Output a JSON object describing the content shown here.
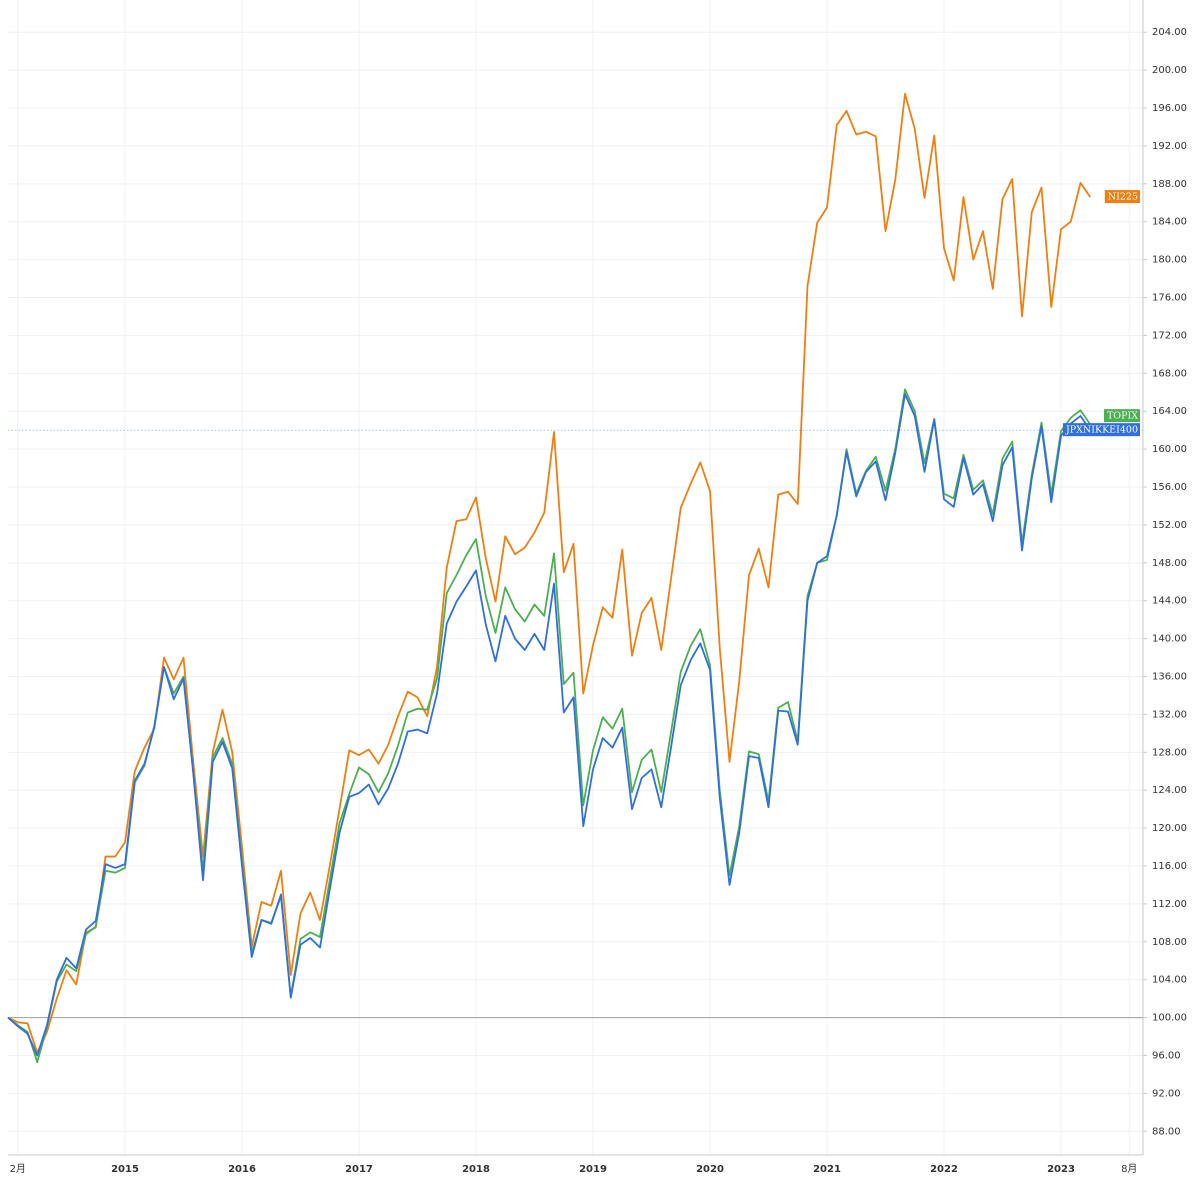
{
  "chart_data": {
    "type": "line",
    "categories": [
      null,
      "2月",
      null,
      null,
      null,
      null,
      null,
      null,
      null,
      null,
      null,
      null,
      "2015",
      null,
      null,
      null,
      null,
      null,
      null,
      null,
      null,
      null,
      null,
      null,
      "2016",
      null,
      null,
      null,
      null,
      null,
      null,
      null,
      null,
      null,
      null,
      null,
      "2017",
      null,
      null,
      null,
      null,
      null,
      null,
      null,
      null,
      null,
      null,
      null,
      "2018",
      null,
      null,
      null,
      null,
      null,
      null,
      null,
      null,
      null,
      null,
      null,
      "2019",
      null,
      null,
      null,
      null,
      null,
      null,
      null,
      null,
      null,
      null,
      null,
      "2020",
      null,
      null,
      null,
      null,
      null,
      null,
      null,
      null,
      null,
      null,
      null,
      "2021",
      null,
      null,
      null,
      null,
      null,
      null,
      null,
      null,
      null,
      null,
      null,
      "2022",
      null,
      null,
      null,
      null,
      null,
      null,
      null,
      null,
      null,
      null,
      null,
      "2023",
      null,
      null,
      null,
      null,
      null,
      null,
      "8月",
      null
    ],
    "series": [
      {
        "name": "NI225",
        "color": "#f07f0f",
        "values": [
          100,
          99.5,
          99.4,
          96.3,
          98.5,
          102,
          105,
          103.5,
          109,
          109.5,
          117,
          117,
          118.5,
          126,
          128.5,
          130.5,
          138,
          135.7,
          138,
          127,
          117,
          128,
          132.5,
          128,
          118,
          107.5,
          112.2,
          111.8,
          115.5,
          104.5,
          111,
          113.2,
          110.3,
          116,
          122,
          128.2,
          127.7,
          128.3,
          126.8,
          128.8,
          131.8,
          134.4,
          133.8,
          131.8,
          137,
          147.5,
          152.4,
          152.6,
          154.9,
          148.5,
          143.9,
          150.8,
          148.9,
          149.6,
          151.2,
          153.3,
          161.8,
          147,
          150,
          134.2,
          139.3,
          143.3,
          142.2,
          149.4,
          138.2,
          142.7,
          144.3,
          138.8,
          146.3,
          153.8,
          156.3,
          158.6,
          155.6,
          139,
          127,
          135.5,
          146.7,
          149.5,
          145.4,
          155.2,
          155.5,
          154.2,
          177.2,
          183.9,
          185.5,
          194.2,
          195.7,
          193.2,
          193.5,
          193,
          183,
          188.4,
          197.5,
          193.8,
          186.5,
          193.1,
          181.2,
          177.8,
          186.6,
          180,
          183,
          176.9,
          186.4,
          188.5,
          174,
          185,
          187.6,
          175,
          183.2,
          184,
          188.1,
          186.6,
          null,
          null,
          null,
          null,
          null
        ]
      },
      {
        "name": "TOPIX",
        "color": "#4caf50",
        "values": [
          100,
          99.2,
          98.5,
          95.3,
          99,
          103.8,
          105.6,
          104.9,
          108.8,
          109.6,
          115.5,
          115.3,
          115.8,
          124.8,
          126.6,
          130.8,
          137,
          134.2,
          136,
          126,
          115.5,
          127.5,
          129.5,
          126.8,
          116.5,
          106.8,
          110.3,
          110,
          112.8,
          102.2,
          108.3,
          109,
          108.5,
          114.5,
          120.5,
          123.6,
          126.4,
          125.7,
          123.8,
          125.8,
          128.7,
          132.2,
          132.6,
          132.5,
          135.8,
          144.8,
          146.7,
          148.8,
          150.5,
          144.5,
          140.6,
          145.4,
          143.1,
          141.8,
          143.6,
          142.4,
          149,
          135.2,
          136.4,
          122.4,
          128.2,
          131.7,
          130.5,
          132.6,
          123.8,
          127.2,
          128.3,
          123.8,
          130.1,
          136.5,
          139.2,
          141,
          137.2,
          124,
          115,
          120.2,
          128.1,
          127.8,
          122.8,
          132.7,
          133.3,
          129.2,
          144.5,
          148,
          148.3,
          153,
          160,
          155.3,
          157.7,
          159.2,
          155.6,
          160,
          166.3,
          164,
          158.5,
          163.2,
          155.3,
          154.8,
          159.4,
          155.7,
          156.7,
          153.1,
          159,
          160.8,
          150,
          157.3,
          162.8,
          155.2,
          161.9,
          163.3,
          164.1,
          162.6,
          null,
          null,
          null,
          null,
          null
        ]
      },
      {
        "name": "JPXNIKKEI400",
        "color": "#2f6fe0",
        "values": [
          100,
          99.1,
          98.3,
          96,
          99.2,
          104,
          106.3,
          105.2,
          109.3,
          110.2,
          116.2,
          115.8,
          116.2,
          125,
          126.8,
          130.6,
          137,
          133.6,
          135.8,
          125.8,
          114.5,
          127,
          129.1,
          126.3,
          116,
          106.4,
          110.3,
          109.9,
          113,
          102.1,
          107.7,
          108.4,
          107.4,
          113.5,
          119.5,
          123.3,
          123.7,
          124.6,
          122.5,
          124.2,
          126.8,
          130.2,
          130.4,
          130,
          134.2,
          141.6,
          143.9,
          145.5,
          147.2,
          141.5,
          137.6,
          142.4,
          140,
          138.8,
          140.5,
          138.8,
          145.8,
          132.2,
          133.8,
          120.2,
          126.2,
          129.5,
          128.5,
          130.6,
          122,
          125.3,
          126.2,
          122.2,
          128.5,
          135.1,
          137.7,
          139.5,
          136.7,
          123.2,
          114,
          119.5,
          127.6,
          127.4,
          122.2,
          132.4,
          132.3,
          128.8,
          144,
          148,
          148.7,
          153,
          159.7,
          155,
          157.6,
          158.7,
          154.6,
          159.6,
          165.8,
          163.5,
          157.6,
          163.1,
          154.7,
          153.9,
          159.1,
          155.2,
          156.3,
          152.4,
          158.3,
          160.2,
          149.3,
          156.9,
          162.4,
          154.4,
          161.4,
          162.7,
          163.5,
          162,
          null,
          null,
          null,
          null,
          null
        ]
      }
    ],
    "ylim": [
      85.5,
      207.4
    ],
    "yticks": [
      {
        "value": 88,
        "label": "88.00"
      },
      {
        "value": 92,
        "label": "92.00"
      },
      {
        "value": 96,
        "label": "96.00"
      },
      {
        "value": 100,
        "label": "100.00"
      },
      {
        "value": 104,
        "label": "104.00"
      },
      {
        "value": 108,
        "label": "108.00"
      },
      {
        "value": 112,
        "label": "112.00"
      },
      {
        "value": 116,
        "label": "116.00"
      },
      {
        "value": 120,
        "label": "120.00"
      },
      {
        "value": 124,
        "label": "124.00"
      },
      {
        "value": 128,
        "label": "128.00"
      },
      {
        "value": 132,
        "label": "132.00"
      },
      {
        "value": 136,
        "label": "136.00"
      },
      {
        "value": 140,
        "label": "140.00"
      },
      {
        "value": 144,
        "label": "144.00"
      },
      {
        "value": 148,
        "label": "148.00"
      },
      {
        "value": 152,
        "label": "152.00"
      },
      {
        "value": 156,
        "label": "156.00"
      },
      {
        "value": 160,
        "label": "160.00"
      },
      {
        "value": 164,
        "label": "164.00"
      },
      {
        "value": 168,
        "label": "168.00"
      },
      {
        "value": 172,
        "label": "172.00"
      },
      {
        "value": 176,
        "label": "176.00"
      },
      {
        "value": 180,
        "label": "180.00"
      },
      {
        "value": 184,
        "label": "184.00"
      },
      {
        "value": 188,
        "label": "188.00"
      },
      {
        "value": 192,
        "label": "192.00"
      },
      {
        "value": 196,
        "label": "196.00"
      },
      {
        "value": 200,
        "label": "200.00"
      },
      {
        "value": 204,
        "label": "204.00"
      }
    ],
    "grid": true
  }
}
